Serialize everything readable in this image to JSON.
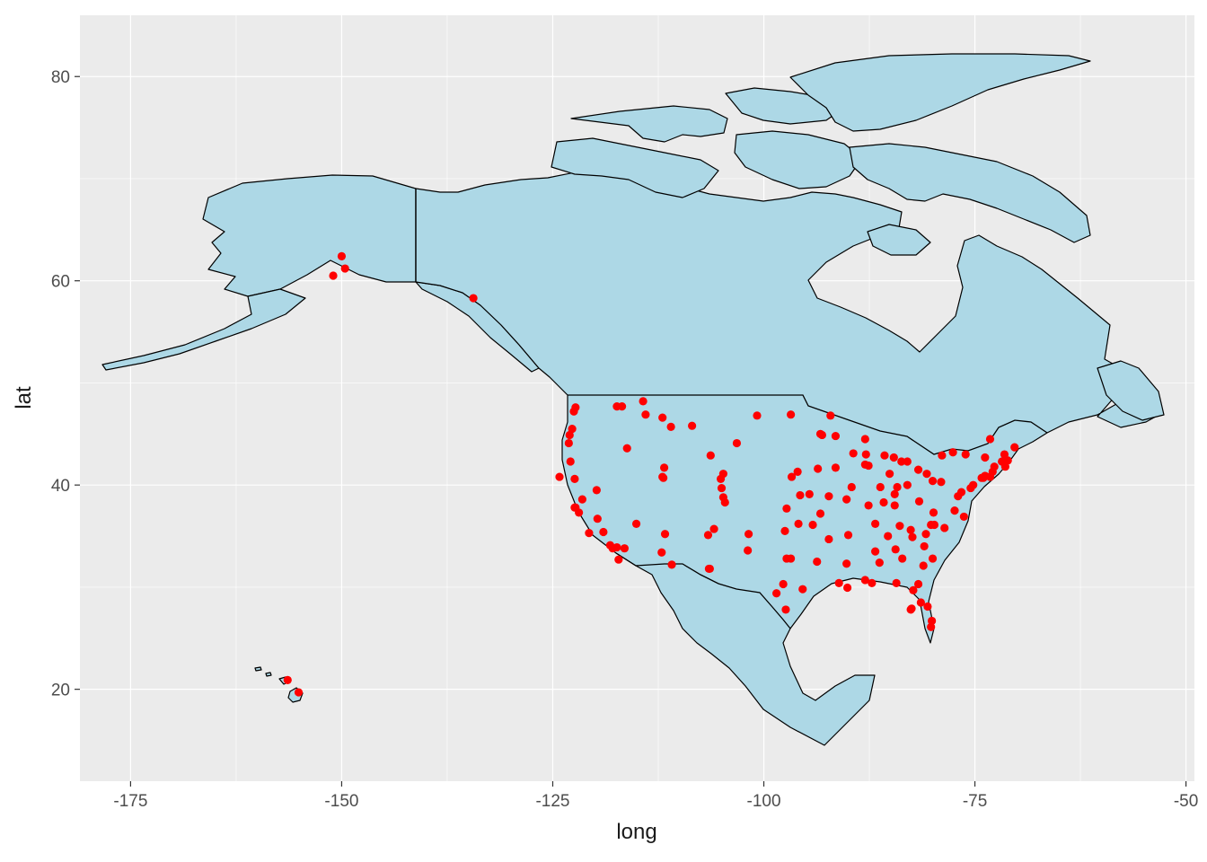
{
  "chart_data": {
    "type": "scatter",
    "title": "",
    "xlabel": "long",
    "ylabel": "lat",
    "xlim": [
      -181,
      -49
    ],
    "ylim": [
      11,
      86
    ],
    "x_ticks": [
      -175,
      -150,
      -125,
      -100,
      -75,
      -50
    ],
    "x_tick_labels": [
      "-175",
      "-150",
      "-125",
      "-100",
      "-75",
      "-50"
    ],
    "y_ticks": [
      20,
      40,
      60,
      80
    ],
    "y_tick_labels": [
      "20",
      "40",
      "60",
      "80"
    ],
    "grid": true,
    "panel_background": "#ebebeb",
    "land_color": "#add8e6",
    "point_color": "#ff0000",
    "points": [
      [
        -150.0,
        62.4
      ],
      [
        -151.0,
        60.5
      ],
      [
        -149.6,
        61.2
      ],
      [
        -134.4,
        58.3
      ],
      [
        -156.4,
        20.9
      ],
      [
        -155.1,
        19.7
      ],
      [
        -122.3,
        47.6
      ],
      [
        -122.7,
        45.5
      ],
      [
        -122.5,
        47.2
      ],
      [
        -123.0,
        44.9
      ],
      [
        -123.1,
        44.1
      ],
      [
        -122.4,
        37.8
      ],
      [
        -121.9,
        37.3
      ],
      [
        -122.3,
        37.8
      ],
      [
        -121.5,
        38.6
      ],
      [
        -122.9,
        42.3
      ],
      [
        -124.2,
        40.8
      ],
      [
        -122.4,
        40.6
      ],
      [
        -117.4,
        47.7
      ],
      [
        -116.2,
        43.6
      ],
      [
        -119.8,
        39.5
      ],
      [
        -118.2,
        34.1
      ],
      [
        -117.2,
        32.7
      ],
      [
        -117.9,
        33.8
      ],
      [
        -119.7,
        36.7
      ],
      [
        -119.0,
        35.4
      ],
      [
        -120.7,
        35.3
      ],
      [
        -117.4,
        33.9
      ],
      [
        -116.5,
        33.8
      ],
      [
        -115.1,
        36.2
      ],
      [
        -112.1,
        33.4
      ],
      [
        -110.9,
        32.2
      ],
      [
        -111.7,
        35.2
      ],
      [
        -112.0,
        40.8
      ],
      [
        -111.9,
        40.7
      ],
      [
        -111.8,
        41.7
      ],
      [
        -106.6,
        35.1
      ],
      [
        -105.9,
        35.7
      ],
      [
        -106.5,
        31.8
      ],
      [
        -104.8,
        38.8
      ],
      [
        -105.0,
        39.7
      ],
      [
        -104.6,
        38.3
      ],
      [
        -105.1,
        40.6
      ],
      [
        -104.8,
        41.1
      ],
      [
        -106.3,
        42.9
      ],
      [
        -108.5,
        45.8
      ],
      [
        -111.0,
        45.7
      ],
      [
        -112.0,
        46.6
      ],
      [
        -114.0,
        46.9
      ],
      [
        -114.3,
        48.2
      ],
      [
        -116.8,
        47.7
      ],
      [
        -103.2,
        44.1
      ],
      [
        -100.8,
        46.8
      ],
      [
        -96.8,
        46.9
      ],
      [
        -96.7,
        40.8
      ],
      [
        -96.0,
        41.3
      ],
      [
        -97.3,
        37.7
      ],
      [
        -95.7,
        39.0
      ],
      [
        -94.6,
        39.1
      ],
      [
        -97.5,
        35.5
      ],
      [
        -95.9,
        36.2
      ],
      [
        -96.8,
        32.8
      ],
      [
        -97.3,
        32.8
      ],
      [
        -95.4,
        29.8
      ],
      [
        -98.5,
        29.4
      ],
      [
        -97.7,
        30.3
      ],
      [
        -97.4,
        27.8
      ],
      [
        -101.8,
        35.2
      ],
      [
        -101.9,
        33.6
      ],
      [
        -106.4,
        31.8
      ],
      [
        -93.3,
        45.0
      ],
      [
        -93.1,
        44.9
      ],
      [
        -92.1,
        46.8
      ],
      [
        -91.5,
        44.8
      ],
      [
        -93.6,
        41.6
      ],
      [
        -91.5,
        41.7
      ],
      [
        -90.2,
        38.6
      ],
      [
        -92.3,
        38.9
      ],
      [
        -93.3,
        37.2
      ],
      [
        -92.3,
        34.7
      ],
      [
        -94.2,
        36.1
      ],
      [
        -90.1,
        29.95
      ],
      [
        -91.1,
        30.4
      ],
      [
        -93.7,
        32.5
      ],
      [
        -90.2,
        32.3
      ],
      [
        -88.0,
        30.7
      ],
      [
        -86.8,
        33.5
      ],
      [
        -86.3,
        32.4
      ],
      [
        -87.6,
        41.9
      ],
      [
        -88.0,
        42.0
      ],
      [
        -89.6,
        39.8
      ],
      [
        -89.4,
        43.1
      ],
      [
        -87.9,
        43.0
      ],
      [
        -88.0,
        44.5
      ],
      [
        -85.7,
        42.9
      ],
      [
        -83.0,
        42.3
      ],
      [
        -83.7,
        42.3
      ],
      [
        -84.6,
        42.7
      ],
      [
        -86.2,
        39.8
      ],
      [
        -85.1,
        41.1
      ],
      [
        -87.6,
        38.0
      ],
      [
        -84.5,
        39.1
      ],
      [
        -83.0,
        40.0
      ],
      [
        -81.7,
        41.5
      ],
      [
        -84.2,
        39.8
      ],
      [
        -80.7,
        41.1
      ],
      [
        -85.8,
        38.3
      ],
      [
        -84.5,
        38.0
      ],
      [
        -86.8,
        36.2
      ],
      [
        -90.0,
        35.1
      ],
      [
        -83.9,
        36.0
      ],
      [
        -85.3,
        35.0
      ],
      [
        -84.4,
        33.7
      ],
      [
        -81.1,
        32.1
      ],
      [
        -83.6,
        32.8
      ],
      [
        -80.8,
        35.2
      ],
      [
        -78.6,
        35.8
      ],
      [
        -79.8,
        36.1
      ],
      [
        -80.2,
        36.1
      ],
      [
        -82.6,
        35.6
      ],
      [
        -77.4,
        37.5
      ],
      [
        -76.3,
        36.9
      ],
      [
        -79.9,
        37.3
      ],
      [
        -81.6,
        38.4
      ],
      [
        -80.0,
        40.4
      ],
      [
        -79.0,
        40.3
      ],
      [
        -77.0,
        38.9
      ],
      [
        -76.6,
        39.3
      ],
      [
        -75.2,
        40.0
      ],
      [
        -75.5,
        39.7
      ],
      [
        -74.2,
        40.7
      ],
      [
        -74.0,
        40.7
      ],
      [
        -73.8,
        40.9
      ],
      [
        -73.2,
        40.8
      ],
      [
        -73.8,
        42.7
      ],
      [
        -76.1,
        43.0
      ],
      [
        -77.6,
        43.2
      ],
      [
        -78.9,
        42.9
      ],
      [
        -72.7,
        41.8
      ],
      [
        -72.9,
        41.3
      ],
      [
        -71.4,
        41.8
      ],
      [
        -71.1,
        42.4
      ],
      [
        -71.8,
        42.3
      ],
      [
        -71.5,
        43.0
      ],
      [
        -70.3,
        43.7
      ],
      [
        -73.2,
        44.5
      ],
      [
        -80.0,
        32.8
      ],
      [
        -81.0,
        34.0
      ],
      [
        -82.4,
        34.9
      ],
      [
        -81.7,
        30.3
      ],
      [
        -81.4,
        28.5
      ],
      [
        -82.5,
        27.9
      ],
      [
        -82.6,
        27.8
      ],
      [
        -80.2,
        26.1
      ],
      [
        -80.1,
        26.7
      ],
      [
        -84.3,
        30.4
      ],
      [
        -87.2,
        30.4
      ],
      [
        -82.3,
        29.7
      ],
      [
        -80.6,
        28.1
      ]
    ]
  }
}
